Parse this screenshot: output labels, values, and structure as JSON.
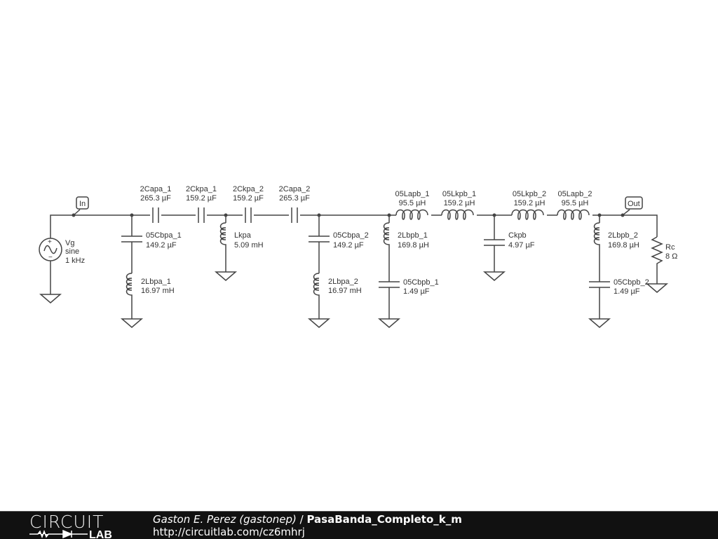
{
  "schematic": {
    "source": {
      "name": "Vg",
      "type": "sine",
      "freq": "1 kHz"
    },
    "in_label": "In",
    "out_label": "Out",
    "series": [
      {
        "name": "2Capa_1",
        "value": "265.3 µF"
      },
      {
        "name": "2Ckpa_1",
        "value": "159.2 µF"
      },
      {
        "name": "2Ckpa_2",
        "value": "159.2 µF"
      },
      {
        "name": "2Capa_2",
        "value": "265.3 µF"
      },
      {
        "name": "05Lapb_1",
        "value": "95.5 µH"
      },
      {
        "name": "05Lkpb_1",
        "value": "159.2 µH"
      },
      {
        "name": "05Lkpb_2",
        "value": "159.2 µH"
      },
      {
        "name": "05Lapb_2",
        "value": "95.5 µH"
      }
    ],
    "shunt": [
      {
        "name": "05Cbpa_1",
        "value": "149.2 µF"
      },
      {
        "name": "2Lbpa_1",
        "value": "16.97 mH"
      },
      {
        "name": "Lkpa",
        "value": "5.09 mH"
      },
      {
        "name": "05Cbpa_2",
        "value": "149.2 µF"
      },
      {
        "name": "2Lbpa_2",
        "value": "16.97 mH"
      },
      {
        "name": "2Lbpb_1",
        "value": "169.8 µH"
      },
      {
        "name": "05Cbpb_1",
        "value": "1.49 µF"
      },
      {
        "name": "Ckpb",
        "value": "4.97 µF"
      },
      {
        "name": "2Lbpb_2",
        "value": "169.8 µH"
      },
      {
        "name": "05Cbpb_2",
        "value": "1.49 µF"
      },
      {
        "name": "Rc",
        "value": "8 Ω"
      }
    ]
  },
  "footer": {
    "logo_top": "CIRCUIT",
    "logo_bottom": "LAB",
    "author": "Gaston E. Perez (gastonep)",
    "separator": " / ",
    "title": "PasaBanda_Completo_k_m",
    "url": "http://circuitlab.com/cz6mhrj"
  }
}
